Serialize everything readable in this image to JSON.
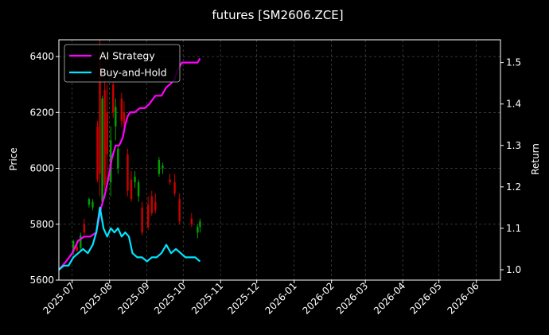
{
  "chart_data": {
    "type": "line",
    "title": "futures [SM2606.ZCE]",
    "xlabel": "",
    "ylabel": "Price",
    "y2label": "Return",
    "xlim": [
      "2025-06-20",
      "2026-06-21"
    ],
    "ylim": [
      5600,
      6460
    ],
    "y2lim": [
      0.975,
      1.555
    ],
    "x_ticks": [
      "2025-07-01",
      "2025-08-01",
      "2025-09-01",
      "2025-10-01",
      "2025-11-01",
      "2025-12-01",
      "2026-01-01",
      "2026-02-01",
      "2026-03-01",
      "2026-04-01",
      "2026-05-01",
      "2026-06-01"
    ],
    "x_tick_labels": [
      "2025-07",
      "2025-08",
      "2025-09",
      "2025-10",
      "2025-11",
      "2025-12",
      "2026-01",
      "2026-02",
      "2026-03",
      "2026-04",
      "2026-05",
      "2026-06"
    ],
    "y_ticks": [
      5600,
      5800,
      6000,
      6200,
      6400
    ],
    "y2_ticks": [
      1.0,
      1.1,
      1.2,
      1.3,
      1.4,
      1.5
    ],
    "grid": true,
    "legend_position": "top-left",
    "colors": {
      "up": "#00a000",
      "down": "#cc0000",
      "strategy": "#ff00ff",
      "hold": "#00e5ff",
      "background": "#000000"
    },
    "candles": [
      {
        "date": "2025-07-02",
        "open": 5700,
        "high": 5745,
        "low": 5690,
        "close": 5740
      },
      {
        "date": "2025-07-05",
        "open": 5720,
        "high": 5740,
        "low": 5700,
        "close": 5705
      },
      {
        "date": "2025-07-08",
        "open": 5715,
        "high": 5770,
        "low": 5705,
        "close": 5760
      },
      {
        "date": "2025-07-11",
        "open": 5800,
        "high": 5820,
        "low": 5760,
        "close": 5770
      },
      {
        "date": "2025-07-15",
        "open": 5870,
        "high": 5895,
        "low": 5860,
        "close": 5890
      },
      {
        "date": "2025-07-18",
        "open": 5860,
        "high": 5890,
        "low": 5850,
        "close": 5880
      },
      {
        "date": "2025-07-22",
        "open": 6150,
        "high": 6170,
        "low": 5950,
        "close": 5960
      },
      {
        "date": "2025-07-24",
        "open": 6400,
        "high": 6460,
        "low": 5900,
        "close": 5980
      },
      {
        "date": "2025-07-26",
        "open": 5880,
        "high": 6260,
        "low": 5870,
        "close": 6250
      },
      {
        "date": "2025-07-28",
        "open": 6280,
        "high": 6320,
        "low": 5920,
        "close": 5940
      },
      {
        "date": "2025-07-30",
        "open": 6200,
        "high": 6300,
        "low": 5950,
        "close": 6050
      },
      {
        "date": "2025-08-02",
        "open": 5950,
        "high": 6150,
        "low": 5900,
        "close": 6100
      },
      {
        "date": "2025-08-04",
        "open": 6300,
        "high": 6310,
        "low": 6180,
        "close": 6200
      },
      {
        "date": "2025-08-06",
        "open": 6150,
        "high": 6250,
        "low": 6100,
        "close": 6220
      },
      {
        "date": "2025-08-08",
        "open": 6000,
        "high": 6080,
        "low": 5980,
        "close": 6070
      },
      {
        "date": "2025-08-11",
        "open": 6250,
        "high": 6270,
        "low": 6150,
        "close": 6170
      },
      {
        "date": "2025-08-13",
        "open": 6200,
        "high": 6240,
        "low": 6150,
        "close": 6160
      },
      {
        "date": "2025-08-16",
        "open": 6050,
        "high": 6070,
        "low": 5900,
        "close": 5920
      },
      {
        "date": "2025-08-19",
        "open": 5960,
        "high": 5990,
        "low": 5880,
        "close": 5890
      },
      {
        "date": "2025-08-22",
        "open": 5950,
        "high": 5990,
        "low": 5930,
        "close": 5970
      },
      {
        "date": "2025-08-25",
        "open": 5900,
        "high": 5960,
        "low": 5880,
        "close": 5950
      },
      {
        "date": "2025-08-28",
        "open": 5860,
        "high": 5880,
        "low": 5760,
        "close": 5770
      },
      {
        "date": "2025-09-02",
        "open": 5870,
        "high": 5900,
        "low": 5780,
        "close": 5790
      },
      {
        "date": "2025-09-05",
        "open": 5900,
        "high": 5920,
        "low": 5830,
        "close": 5840
      },
      {
        "date": "2025-09-08",
        "open": 5880,
        "high": 5910,
        "low": 5840,
        "close": 5850
      },
      {
        "date": "2025-09-11",
        "open": 5980,
        "high": 6040,
        "low": 5970,
        "close": 6030
      },
      {
        "date": "2025-09-14",
        "open": 6000,
        "high": 6020,
        "low": 5980,
        "close": 6010
      },
      {
        "date": "2025-09-20",
        "open": 5960,
        "high": 5980,
        "low": 5940,
        "close": 5950
      },
      {
        "date": "2025-09-24",
        "open": 5950,
        "high": 5980,
        "low": 5900,
        "close": 5910
      },
      {
        "date": "2025-09-28",
        "open": 5890,
        "high": 5910,
        "low": 5800,
        "close": 5810
      },
      {
        "date": "2025-10-08",
        "open": 5820,
        "high": 5840,
        "low": 5790,
        "close": 5800
      },
      {
        "date": "2025-10-13",
        "open": 5770,
        "high": 5800,
        "low": 5750,
        "close": 5790
      },
      {
        "date": "2025-10-15",
        "open": 5790,
        "high": 5820,
        "low": 5770,
        "close": 5810
      }
    ],
    "series": [
      {
        "name": "AI Strategy",
        "axis": "right",
        "x": [
          "2025-06-20",
          "2025-06-26",
          "2025-07-01",
          "2025-07-06",
          "2025-07-11",
          "2025-07-16",
          "2025-07-21",
          "2025-07-23",
          "2025-07-25",
          "2025-07-28",
          "2025-07-31",
          "2025-08-03",
          "2025-08-06",
          "2025-08-09",
          "2025-08-12",
          "2025-08-14",
          "2025-08-16",
          "2025-08-18",
          "2025-08-22",
          "2025-08-26",
          "2025-08-30",
          "2025-09-03",
          "2025-09-08",
          "2025-09-13",
          "2025-09-17",
          "2025-09-21",
          "2025-09-24",
          "2025-09-26",
          "2025-09-30",
          "2025-10-05",
          "2025-10-10",
          "2025-10-13",
          "2025-10-15"
        ],
        "values": [
          1.0,
          1.02,
          1.04,
          1.07,
          1.08,
          1.08,
          1.09,
          1.12,
          1.15,
          1.18,
          1.22,
          1.27,
          1.3,
          1.3,
          1.32,
          1.35,
          1.37,
          1.38,
          1.38,
          1.39,
          1.39,
          1.4,
          1.42,
          1.42,
          1.44,
          1.45,
          1.46,
          1.48,
          1.5,
          1.5,
          1.5,
          1.5,
          1.51
        ]
      },
      {
        "name": "Buy-and-Hold",
        "axis": "right",
        "x": [
          "2025-06-20",
          "2025-06-24",
          "2025-06-28",
          "2025-07-02",
          "2025-07-06",
          "2025-07-10",
          "2025-07-14",
          "2025-07-18",
          "2025-07-21",
          "2025-07-24",
          "2025-07-27",
          "2025-07-30",
          "2025-08-02",
          "2025-08-05",
          "2025-08-08",
          "2025-08-11",
          "2025-08-14",
          "2025-08-17",
          "2025-08-20",
          "2025-08-24",
          "2025-08-28",
          "2025-09-01",
          "2025-09-05",
          "2025-09-09",
          "2025-09-13",
          "2025-09-17",
          "2025-09-21",
          "2025-09-25",
          "2025-09-29",
          "2025-10-03",
          "2025-10-07",
          "2025-10-11",
          "2025-10-15"
        ],
        "values": [
          1.0,
          1.01,
          1.01,
          1.03,
          1.04,
          1.05,
          1.04,
          1.06,
          1.09,
          1.15,
          1.1,
          1.08,
          1.1,
          1.09,
          1.1,
          1.08,
          1.09,
          1.08,
          1.04,
          1.03,
          1.03,
          1.02,
          1.03,
          1.03,
          1.04,
          1.06,
          1.04,
          1.05,
          1.04,
          1.03,
          1.03,
          1.03,
          1.02
        ]
      }
    ]
  }
}
